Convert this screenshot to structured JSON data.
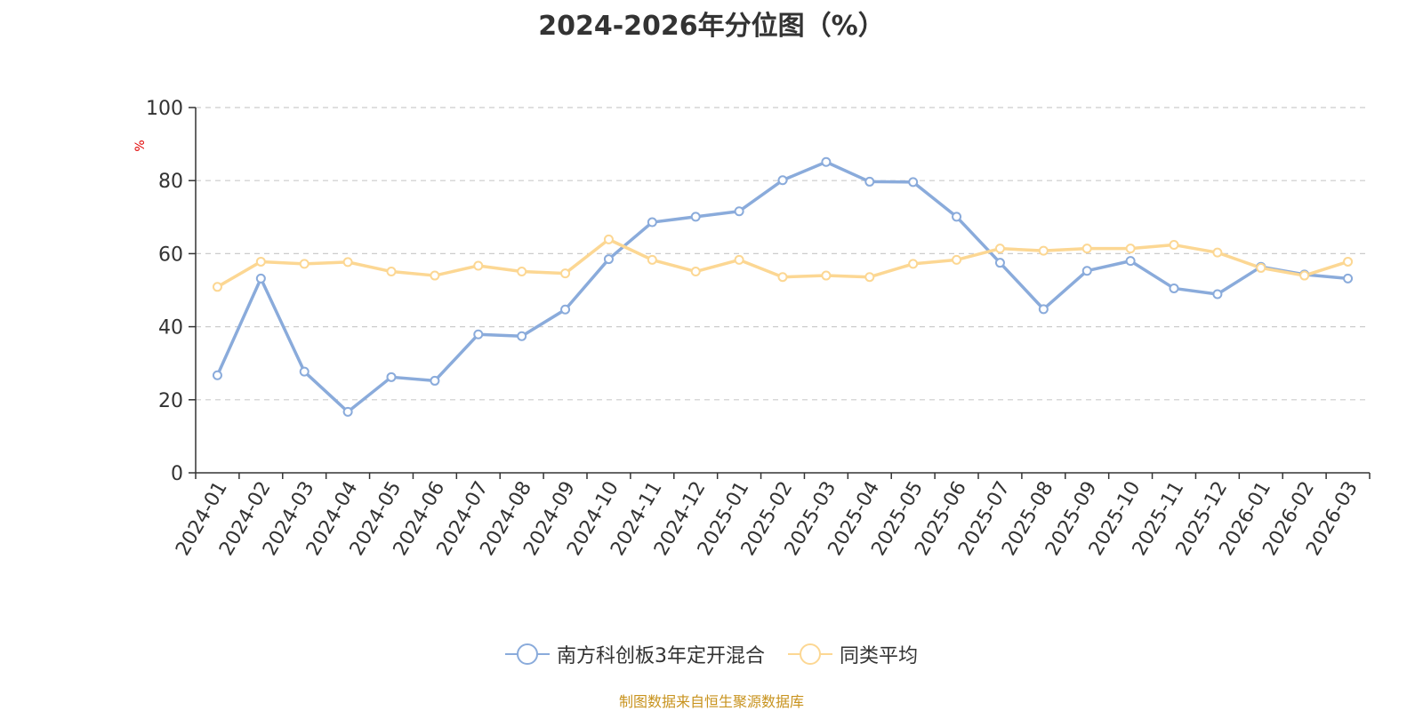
{
  "chart_data": {
    "type": "line",
    "title": "2024-2026年分位图（%）",
    "ylabel": "%",
    "xlabel": "",
    "ylim": [
      0,
      100
    ],
    "yticks": [
      0,
      20,
      40,
      60,
      80,
      100
    ],
    "grid": true,
    "legend_position": "bottom",
    "categories": [
      "2024-01",
      "2024-02",
      "2024-03",
      "2024-04",
      "2024-05",
      "2024-06",
      "2024-07",
      "2024-08",
      "2024-09",
      "2024-10",
      "2024-11",
      "2024-12",
      "2025-01",
      "2025-02",
      "2025-03",
      "2025-04",
      "2025-05",
      "2025-06",
      "2025-07",
      "2025-08",
      "2025-09",
      "2025-10",
      "2025-11",
      "2025-12",
      "2026-01",
      "2026-02",
      "2026-03"
    ],
    "series": [
      {
        "name": "南方科创板3年定开混合",
        "color": "#8aabdb",
        "values": [
          26.7,
          53.2,
          27.7,
          16.7,
          26.2,
          25.2,
          37.9,
          37.4,
          44.7,
          58.5,
          68.6,
          70.1,
          71.6,
          80.1,
          85.1,
          79.7,
          79.6,
          70.1,
          57.5,
          44.8,
          55.3,
          58.0,
          50.5,
          48.9,
          56.4,
          54.3,
          53.2
        ]
      },
      {
        "name": "同类平均",
        "color": "#fcd793",
        "values": [
          50.9,
          57.8,
          57.2,
          57.7,
          55.1,
          54.0,
          56.7,
          55.1,
          54.6,
          63.9,
          58.3,
          55.1,
          58.3,
          53.6,
          54.0,
          53.6,
          57.2,
          58.3,
          61.4,
          60.8,
          61.4,
          61.4,
          62.4,
          60.3,
          56.1,
          54.0,
          57.8
        ]
      }
    ]
  },
  "source_text": "制图数据来自恒生聚源数据库"
}
